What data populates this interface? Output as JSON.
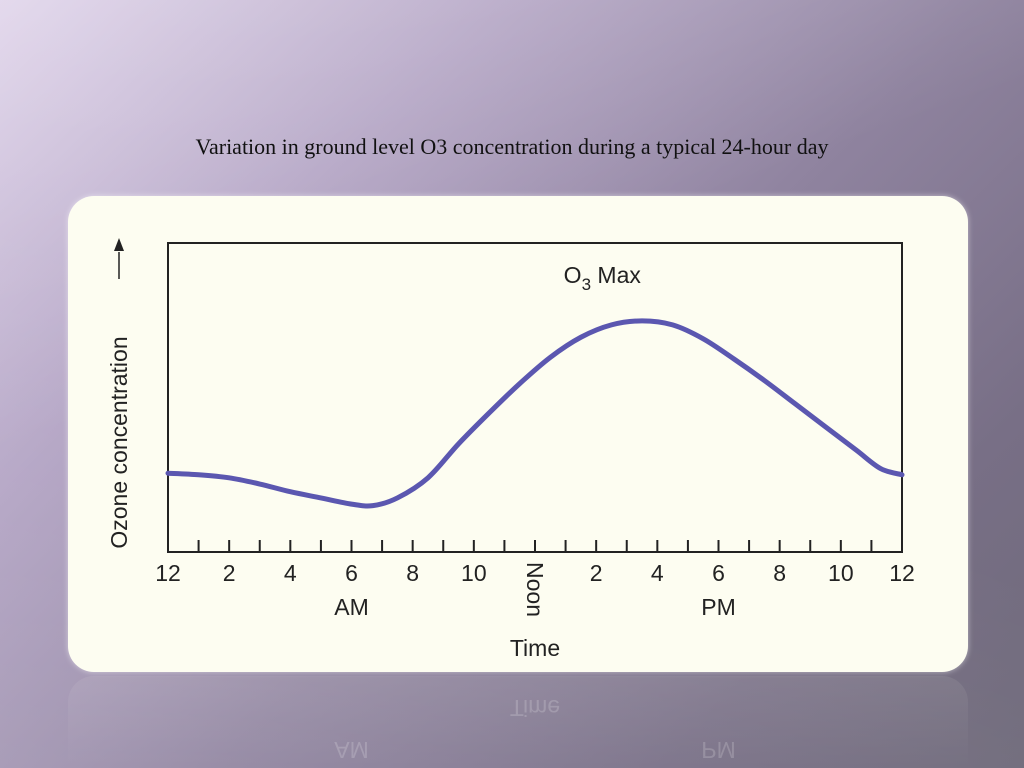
{
  "slide": {
    "title": "Variation in ground level O3 concentration during a typical 24-hour day"
  },
  "colors": {
    "curve": "#5b57b0",
    "card_background": "#fdfdf1",
    "axis": "#222222"
  },
  "chart_data": {
    "type": "line",
    "title": "",
    "xlabel": "Time",
    "ylabel": "Ozone concentration",
    "ylabel_arrow": "up",
    "grid": false,
    "x_ticks": [
      {
        "hour": 0,
        "label": "12"
      },
      {
        "hour": 2,
        "label": "2"
      },
      {
        "hour": 4,
        "label": "4"
      },
      {
        "hour": 6,
        "label": "6"
      },
      {
        "hour": 8,
        "label": "8"
      },
      {
        "hour": 10,
        "label": "10"
      },
      {
        "hour": 12,
        "label": "Noon",
        "rotated": true
      },
      {
        "hour": 14,
        "label": "2"
      },
      {
        "hour": 16,
        "label": "4"
      },
      {
        "hour": 18,
        "label": "6"
      },
      {
        "hour": 20,
        "label": "8"
      },
      {
        "hour": 22,
        "label": "10"
      },
      {
        "hour": 24,
        "label": "12"
      }
    ],
    "minor_tick_hours": [
      1,
      3,
      5,
      7,
      9,
      11,
      13,
      15,
      17,
      19,
      21,
      23
    ],
    "period_labels": [
      {
        "label": "AM",
        "hour": 6
      },
      {
        "label": "PM",
        "hour": 18
      }
    ],
    "xlim": [
      0,
      24
    ],
    "ylim": [
      0,
      100
    ],
    "series": [
      {
        "points": [
          [
            0,
            25.5
          ],
          [
            1,
            25.0
          ],
          [
            2,
            24.0
          ],
          [
            3,
            22.0
          ],
          [
            4,
            19.5
          ],
          [
            5,
            17.5
          ],
          [
            6,
            15.5
          ],
          [
            6.7,
            15.0
          ],
          [
            7.5,
            17.5
          ],
          [
            8.5,
            24.0
          ],
          [
            9.5,
            35.0
          ],
          [
            10.5,
            45.0
          ],
          [
            11.5,
            54.5
          ],
          [
            12.5,
            63.0
          ],
          [
            13.5,
            69.5
          ],
          [
            14.5,
            73.5
          ],
          [
            15.5,
            74.8
          ],
          [
            16.5,
            73.5
          ],
          [
            17.5,
            69.0
          ],
          [
            18.5,
            62.5
          ],
          [
            19.5,
            55.5
          ],
          [
            20.5,
            48.0
          ],
          [
            21.5,
            40.5
          ],
          [
            22.5,
            33.0
          ],
          [
            23.3,
            27.0
          ],
          [
            24,
            25.0
          ]
        ]
      }
    ],
    "annotations": [
      {
        "text": "O",
        "subscript": "3",
        "suffix": " Max",
        "hour": 14.2,
        "value": 87
      }
    ]
  }
}
